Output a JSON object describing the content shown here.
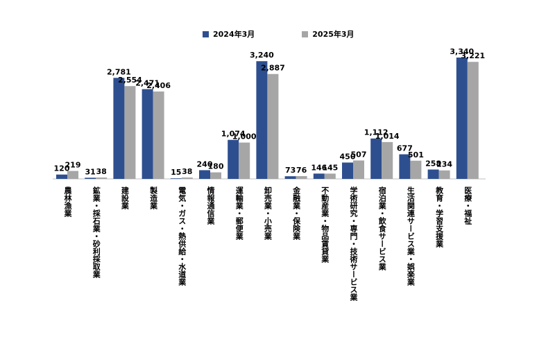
{
  "chart_data": {
    "type": "bar",
    "categories": [
      "農林漁業",
      "鉱業・採石業・砂利採取業",
      "建設業",
      "製造業",
      "電気・ガス・熱供給・水道業",
      "情報通信業",
      "運輸業・郵便業",
      "卸売業・小売業",
      "金融業・保険業",
      "不動産業・物品賃貸業",
      "学術研究・専門・技術サービス業",
      "宿泊業・飲食サービス業",
      "生活関連サービス業・娯楽業",
      "教育・学習支援業",
      "医療・福祉"
    ],
    "series": [
      {
        "name": "2024年3月",
        "color": "#2e4f8f",
        "values": [
          120,
          31,
          2781,
          2471,
          15,
          240,
          1074,
          3240,
          73,
          146,
          450,
          1112,
          677,
          258,
          3340
        ],
        "labels": [
          "120",
          "31",
          "2,781",
          "2,471",
          "15",
          "240",
          "1,074",
          "3,240",
          "73",
          "146",
          "450",
          "1,112",
          "677",
          "258",
          "3,340"
        ]
      },
      {
        "name": "2025年3月",
        "color": "#a6a6a6",
        "values": [
          219,
          38,
          2554,
          2406,
          38,
          180,
          1000,
          2887,
          76,
          145,
          507,
          1014,
          501,
          234,
          3221
        ],
        "labels": [
          "219",
          "38",
          "2,554",
          "2,406",
          "38",
          "180",
          "1,000",
          "2,887",
          "76",
          "145",
          "507",
          "1,014",
          "501",
          "234",
          "3,221"
        ]
      }
    ],
    "ylim": [
      0,
      3400
    ],
    "legend": "top-center",
    "grid": false,
    "title": "",
    "xlabel": "",
    "ylabel": ""
  }
}
